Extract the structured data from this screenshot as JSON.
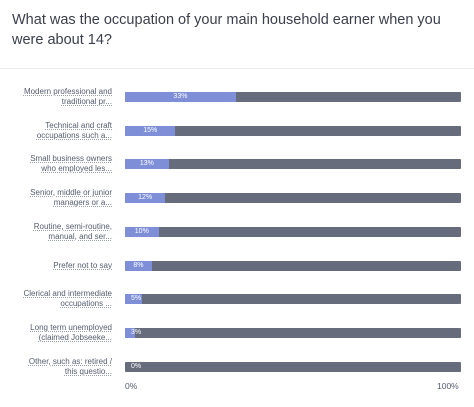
{
  "question": "What was the occupation of your main household earner when you were about 14?",
  "chart_data": {
    "type": "bar",
    "orientation": "horizontal",
    "categories": [
      [
        "Modern professional and",
        "traditional pr..."
      ],
      [
        "Technical and craft",
        "occupations such a..."
      ],
      [
        "Small business owners",
        "who employed les..."
      ],
      [
        "Senior, middle or junior",
        "managers or a..."
      ],
      [
        "Routine, semi-routine,",
        "manual, and ser..."
      ],
      [
        "Prefer not to say"
      ],
      [
        "Clerical and intermediate",
        "occupations ..."
      ],
      [
        "Long term unemployed",
        "(claimed Jobseeke..."
      ],
      [
        "Other, such as: retired /",
        "this questio..."
      ]
    ],
    "values": [
      33,
      15,
      13,
      12,
      10,
      8,
      5,
      3,
      0
    ],
    "value_labels": [
      "33%",
      "15%",
      "13%",
      "12%",
      "10%",
      "8%",
      "5%",
      "3%",
      "0%"
    ],
    "xlim": [
      0,
      100
    ],
    "x_ticks": [
      "0%",
      "100%"
    ],
    "fill_color": "#7e8fd8",
    "track_color": "#666c7c",
    "grid": false,
    "legend": "none"
  }
}
